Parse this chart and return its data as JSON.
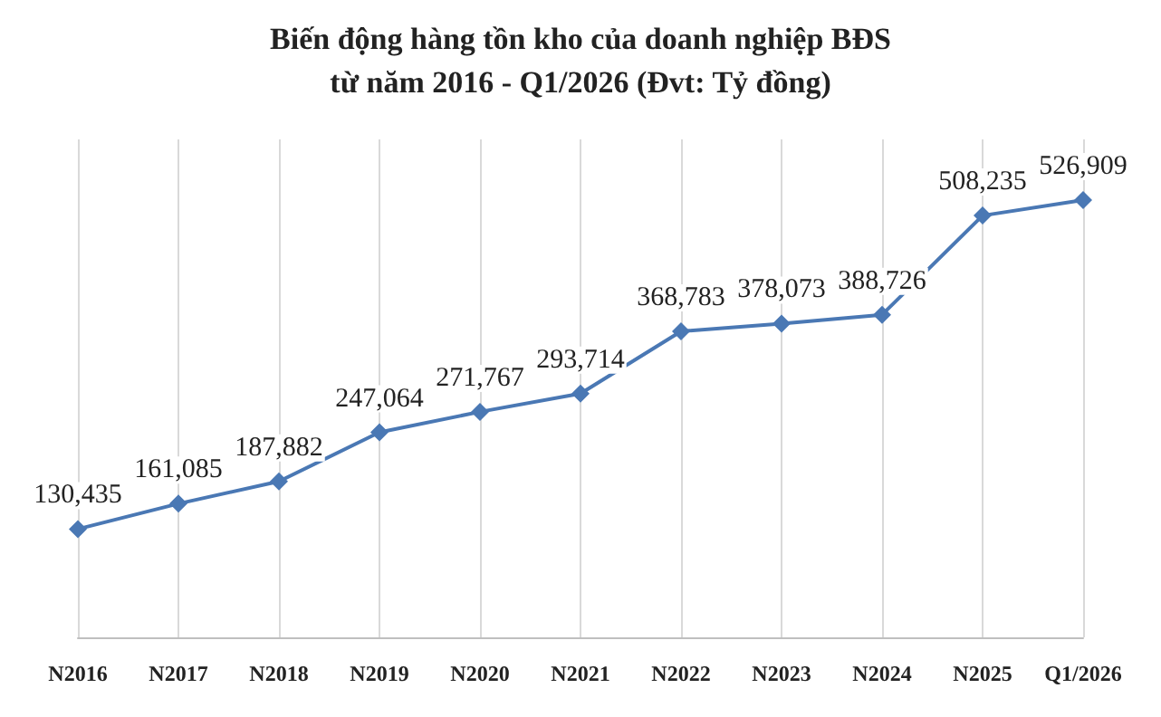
{
  "chart_data": {
    "type": "line",
    "title": "Biến động hàng tồn kho của doanh nghiệp BĐS",
    "subtitle": "từ năm 2016 - Q1/2026 (Đvt: Tỷ đồng)",
    "categories": [
      "N2016",
      "N2017",
      "N2018",
      "N2019",
      "N2020",
      "N2021",
      "N2022",
      "N2023",
      "N2024",
      "N2025",
      "Q1/2026"
    ],
    "series": [
      {
        "color": "#4a78b4",
        "values": [
          130435,
          161085,
          187882,
          247064,
          271767,
          293714,
          368783,
          378073,
          388726,
          508235,
          526909
        ],
        "value_labels": [
          "130,435",
          "161,085",
          "187,882",
          "247,064",
          "271,767",
          "293,714",
          "368,783",
          "378,073",
          "388,726",
          "508,235",
          "526,909"
        ]
      }
    ],
    "grid": "x",
    "marker": "diamond",
    "line_style": "solid"
  }
}
